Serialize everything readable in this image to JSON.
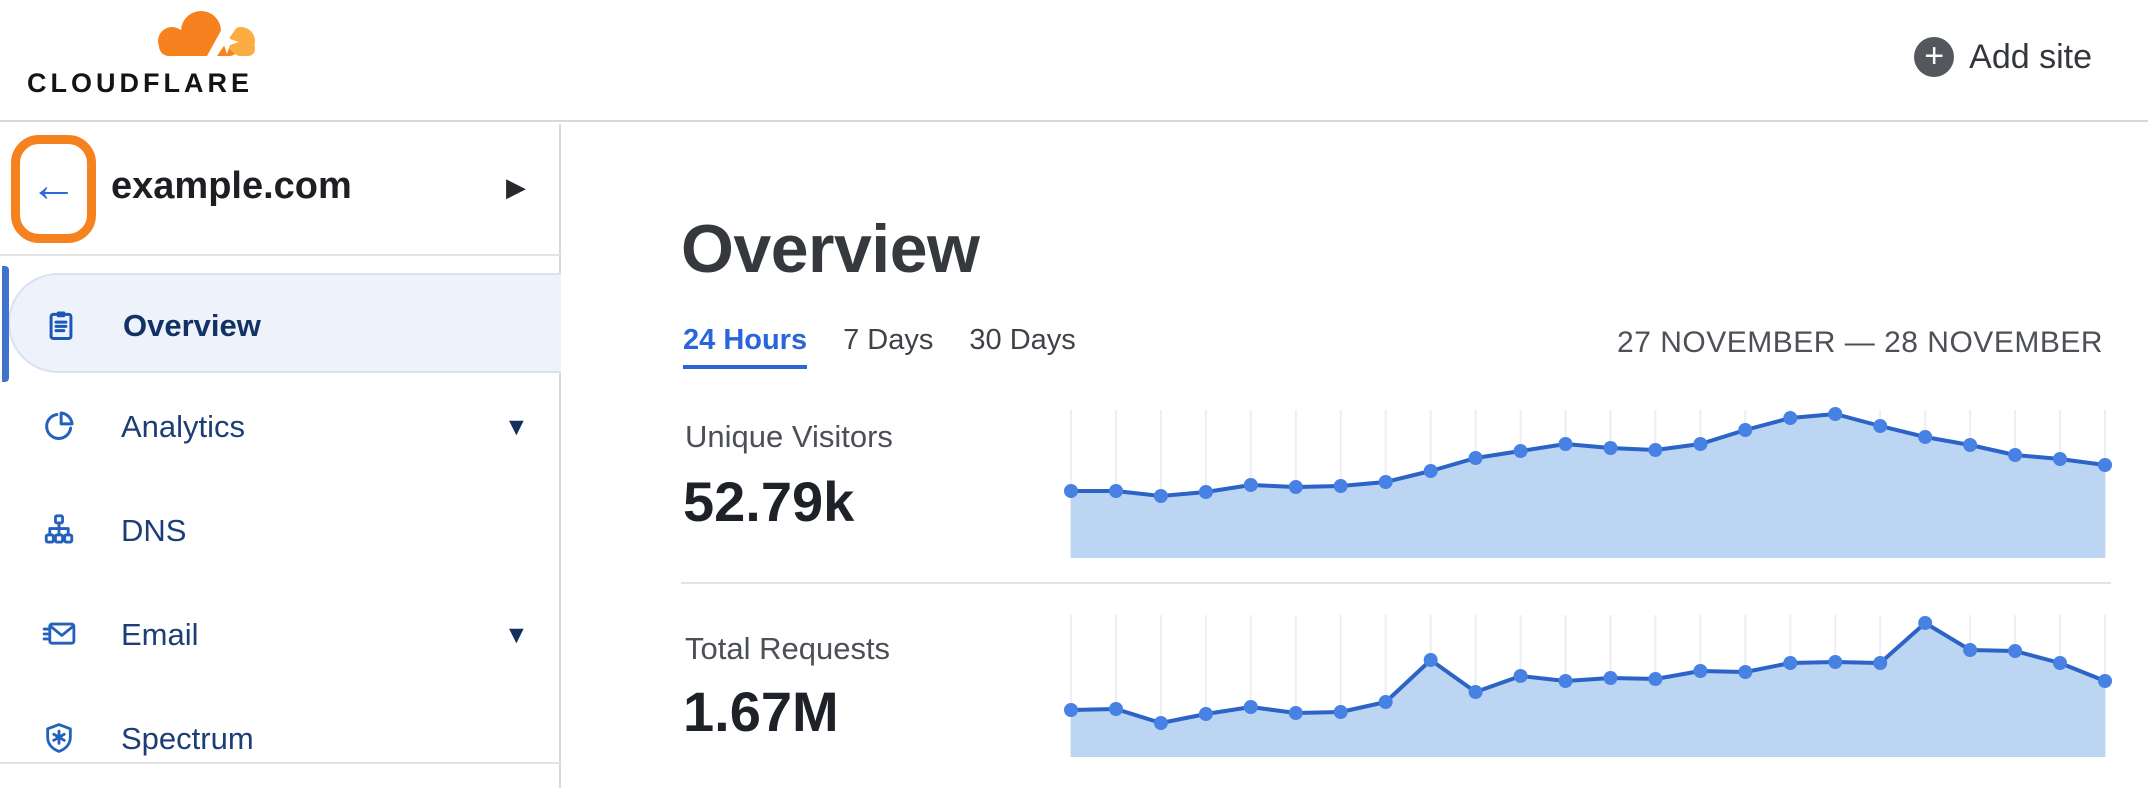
{
  "header": {
    "logo_text": "CLOUDFLARE",
    "add_site_label": "Add site"
  },
  "icons": {
    "plus": "+",
    "caret_right": "▶",
    "caret_down": "▼",
    "back_arrow": "←"
  },
  "sidebar": {
    "site": {
      "name": "example.com",
      "back_button_highlighted": true
    },
    "items": [
      {
        "label": "Overview",
        "selected": true,
        "has_caret": false
      },
      {
        "label": "Analytics",
        "selected": false,
        "has_caret": true
      },
      {
        "label": "DNS",
        "selected": false,
        "has_caret": false
      },
      {
        "label": "Email",
        "selected": false,
        "has_caret": true
      },
      {
        "label": "Spectrum",
        "selected": false,
        "has_caret": false
      }
    ]
  },
  "main": {
    "title": "Overview",
    "tabs": [
      {
        "label": "24 Hours",
        "active": true
      },
      {
        "label": "7 Days",
        "active": false
      },
      {
        "label": "30 Days",
        "active": false
      }
    ],
    "date_range": "27 NOVEMBER — 28 NOVEMBER",
    "metrics": [
      {
        "label": "Unique Visitors",
        "value": "52.79k"
      },
      {
        "label": "Total Requests",
        "value": "1.67M"
      }
    ]
  },
  "colors": {
    "brand_orange": "#F6821F",
    "brand_orange_light": "#FBAD41",
    "highlight_border": "#F6821F",
    "link_blue": "#2a65d9",
    "sidebar_text": "#1c3e74",
    "sidebar_selected_bg": "#edf2fb",
    "sidebar_accent": "#4173cd",
    "chart_fill": "#bcd5f3",
    "chart_line": "#2b63c7",
    "chart_dot": "#4781e3",
    "chart_grid": "#eceef1",
    "divider": "#e3e3e3"
  },
  "chart_data": [
    {
      "type": "area",
      "title": "Unique Visitors",
      "total_label": "52.79k",
      "x": [
        0,
        1,
        2,
        3,
        4,
        5,
        6,
        7,
        8,
        9,
        10,
        11,
        12,
        13,
        14,
        15,
        16,
        17,
        18,
        19,
        20,
        21,
        22,
        23
      ],
      "values": [
        67,
        67,
        62,
        66,
        73,
        71,
        72,
        76,
        87,
        100,
        107,
        114,
        110,
        108,
        114,
        128,
        140,
        144,
        132,
        121,
        113,
        103,
        99,
        93
      ],
      "value_units": "relative (no y-axis shown)",
      "xlabel": "hours over 27 November — 28 November",
      "ylabel": "",
      "ylim": [
        0,
        158
      ],
      "grid": "vertical-only",
      "legend": "none",
      "axis_labels_hidden": true
    },
    {
      "type": "area",
      "title": "Total Requests",
      "total_label": "1.67M",
      "x": [
        0,
        1,
        2,
        3,
        4,
        5,
        6,
        7,
        8,
        9,
        10,
        11,
        12,
        13,
        14,
        15,
        16,
        17,
        18,
        19,
        20,
        21,
        22,
        23
      ],
      "values": [
        47,
        48,
        34,
        43,
        50,
        44,
        45,
        55,
        97,
        65,
        81,
        76,
        79,
        78,
        86,
        85,
        94,
        95,
        94,
        134,
        107,
        106,
        94,
        76
      ],
      "value_units": "relative (no y-axis shown)",
      "xlabel": "hours over 27 November — 28 November",
      "ylabel": "",
      "ylim": [
        0,
        152
      ],
      "grid": "vertical-only",
      "legend": "none",
      "axis_labels_hidden": true
    }
  ]
}
